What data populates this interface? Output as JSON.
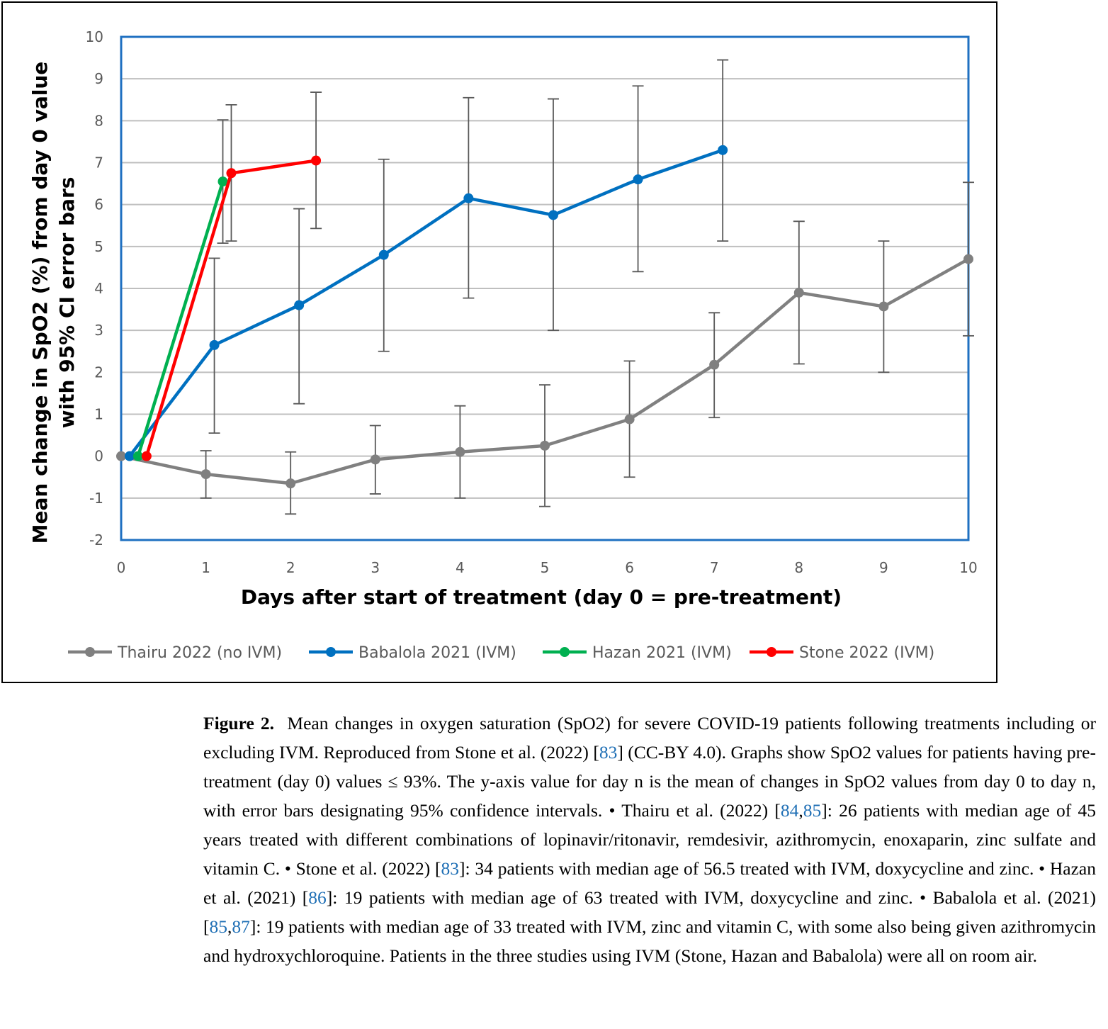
{
  "chart_data": {
    "type": "line",
    "xlabel": "Days after start of treatment (day 0 = pre-treatment)",
    "ylabel_lines": [
      "Mean change in SpO2 (%) from day 0 value",
      "with 95% CI error bars"
    ],
    "xlim": [
      0,
      10
    ],
    "ylim": [
      -2,
      10
    ],
    "x_ticks": [
      "0",
      "1",
      "2",
      "3",
      "4",
      "5",
      "6",
      "7",
      "8",
      "9",
      "10"
    ],
    "y_ticks": [
      "-2",
      "-1",
      "0",
      "1",
      "2",
      "3",
      "4",
      "5",
      "6",
      "7",
      "8",
      "9",
      "10"
    ],
    "grid": "horizontal",
    "legend_position": "bottom",
    "colors": {
      "plot_border": "#1f70c1",
      "grid": "#bfbfbf"
    },
    "series": [
      {
        "name": "Thairu 2022 (no IVM)",
        "color": "#808080",
        "x": [
          0,
          1,
          2,
          3,
          4,
          5,
          6,
          7,
          8,
          9,
          10
        ],
        "y": [
          0,
          -0.43,
          -0.65,
          -0.08,
          0.1,
          0.25,
          0.88,
          2.18,
          3.9,
          3.57,
          4.7
        ],
        "low": [
          null,
          -1.0,
          -1.38,
          -0.9,
          -1.0,
          -1.2,
          -0.5,
          0.92,
          2.2,
          2.0,
          2.87
        ],
        "high": [
          null,
          0.13,
          0.1,
          0.73,
          1.2,
          1.7,
          2.27,
          3.42,
          5.6,
          5.13,
          6.53
        ]
      },
      {
        "name": "Babalola 2021 (IVM)",
        "color": "#0070c0",
        "x": [
          0.1,
          1.1,
          2.1,
          3.1,
          4.1,
          5.1,
          6.1,
          7.1
        ],
        "y": [
          0,
          2.65,
          3.6,
          4.8,
          6.15,
          5.75,
          6.6,
          7.3
        ],
        "low": [
          null,
          0.55,
          1.25,
          2.5,
          3.77,
          3.0,
          4.4,
          5.13
        ],
        "high": [
          null,
          4.72,
          5.9,
          7.08,
          8.55,
          8.52,
          8.83,
          9.45
        ]
      },
      {
        "name": "Hazan 2021 (IVM)",
        "color": "#00b050",
        "x": [
          0.2,
          1.2
        ],
        "y": [
          0,
          6.55
        ],
        "low": [
          null,
          5.08
        ],
        "high": [
          null,
          8.02
        ]
      },
      {
        "name": "Stone 2022 (IVM)",
        "color": "#ff0000",
        "x": [
          0.3,
          1.3,
          2.3
        ],
        "y": [
          0,
          6.75,
          7.05
        ],
        "low": [
          null,
          5.13,
          5.43
        ],
        "high": [
          null,
          8.38,
          8.68
        ]
      }
    ]
  },
  "caption": {
    "label": "Figure 2.",
    "p1": "Mean changes in oxygen saturation (SpO2) for severe COVID-19 patients following treatments including or excluding IVM. Reproduced from Stone et al. (2022) [",
    "ref1": "83",
    "p2": "] (CC-BY 4.0). Graphs show SpO2 values for patients having pre-treatment (day 0) values ≤ 93%. The y-axis value for day n is the mean of changes in SpO2 values from day 0 to day n, with error bars designating 95% confidence intervals. • Thairu et al. (2022) [",
    "ref2": "84",
    "comma1": ",",
    "ref3": "85",
    "p3": "]: 26 patients with median age of 45 years treated with different combinations of lopinavir/ritonavir, remdesivir, azithromycin, enoxaparin, zinc sulfate and vitamin C. • Stone et al. (2022) [",
    "ref4": "83",
    "p4": "]: 34 patients with median age of 56.5 treated with IVM, doxycycline and zinc. • Hazan et al. (2021) [",
    "ref5": "86",
    "p5": "]: 19 patients with median age of 63 treated with IVM, doxycycline and zinc. • Babalola et al. (2021) [",
    "ref6": "85",
    "comma2": ",",
    "ref7": "87",
    "p6": "]: 19 patients with median age of 33 treated with IVM, zinc and vitamin C, with some also being given azithromycin and hydroxychloroquine. Patients in the three studies using IVM (Stone, Hazan and Babalola) were all on room air."
  }
}
